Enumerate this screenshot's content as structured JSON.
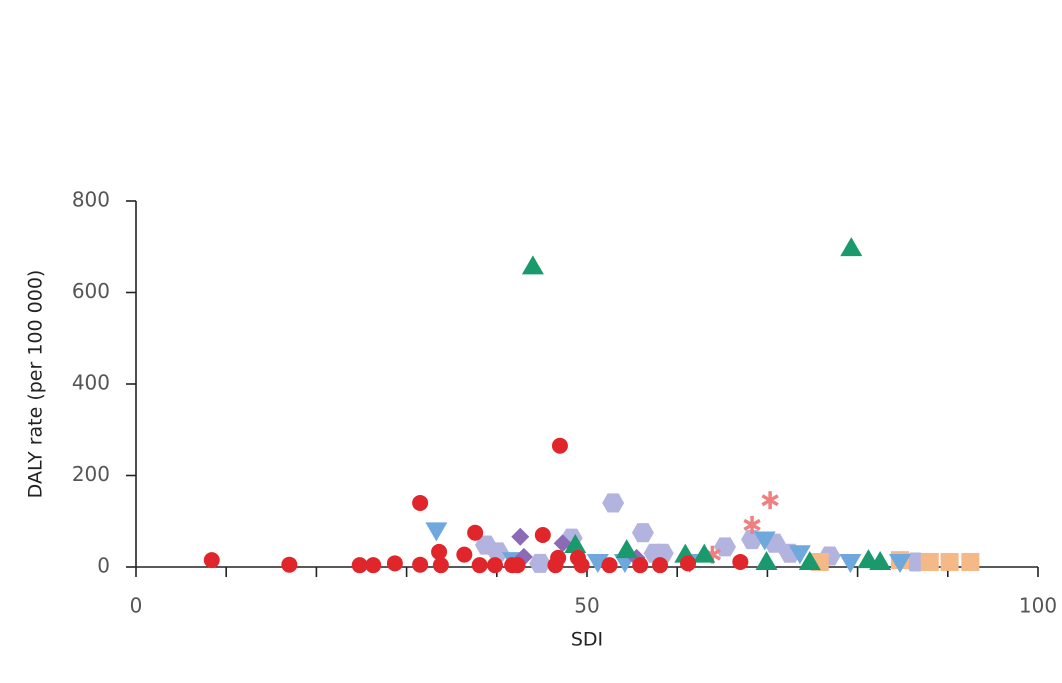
{
  "chart_data": {
    "type": "scatter",
    "x_label": "SDI",
    "y_label": "DALY rate (per 100 000)",
    "xlim": [
      0,
      100
    ],
    "ylim": [
      0,
      800
    ],
    "xticks": [
      0,
      50,
      100
    ],
    "xminorticks": [
      10,
      20,
      30,
      40,
      60,
      70,
      80,
      90
    ],
    "yticks": [
      0,
      200,
      400,
      600,
      800
    ],
    "series": [
      {
        "marker": "hexagon",
        "color": "#b3b3e0",
        "x": [
          38.8,
          40.1,
          44.8,
          48.3,
          52.9,
          56.2,
          57.5,
          58.4,
          65.3,
          68.3,
          70.8,
          72.5,
          76.9,
          86.4
        ],
        "values": [
          48,
          33,
          8,
          63,
          140,
          75,
          30,
          30,
          44,
          60,
          52,
          30,
          24,
          11
        ]
      },
      {
        "marker": "square",
        "color": "#f5b887",
        "x": [
          75.8,
          84.7,
          88,
          90.2,
          92.5
        ],
        "values": [
          11,
          15,
          11,
          11,
          11
        ]
      },
      {
        "marker": "triangle-down",
        "color": "#6fa8dc",
        "x": [
          33.3,
          41.8,
          51.2,
          54.2,
          61.4,
          69.7,
          73.6,
          79.2,
          84.7
        ],
        "values": [
          80,
          15,
          11,
          11,
          11,
          60,
          30,
          11,
          11
        ]
      },
      {
        "marker": "diamond",
        "color": "#8b6bb5",
        "x": [
          42.6,
          43,
          47.3,
          55.5
        ],
        "values": [
          66,
          22,
          52,
          20
        ]
      },
      {
        "marker": "asterisk",
        "color": "#f08080",
        "x": [
          68.3,
          70.3,
          63.9
        ],
        "values": [
          92,
          146,
          27
        ]
      },
      {
        "marker": "triangle",
        "color": "#1a9a6c",
        "x": [
          44,
          79.3,
          48.7,
          54.4,
          60.9,
          63,
          69.9,
          74.7,
          81.2,
          82.5
        ],
        "values": [
          657,
          697,
          48,
          37,
          27,
          27,
          11,
          11,
          15,
          11
        ]
      },
      {
        "marker": "circle",
        "color": "#e0262a",
        "x": [
          8.4,
          17,
          24.8,
          26.3,
          28.7,
          31.5,
          31.5,
          33.6,
          33.8,
          36.4,
          37.6,
          38.1,
          39.8,
          41.7,
          42.3,
          45.1,
          46.5,
          47,
          46.8,
          49,
          49.4,
          52.5,
          55.9,
          58.1,
          61.2,
          67
        ],
        "values": [
          15,
          5,
          4,
          4,
          8,
          5,
          140,
          33,
          4,
          27,
          75,
          4,
          4,
          4,
          4,
          70,
          4,
          265,
          20,
          20,
          4,
          4,
          4,
          4,
          8,
          11
        ]
      }
    ]
  }
}
